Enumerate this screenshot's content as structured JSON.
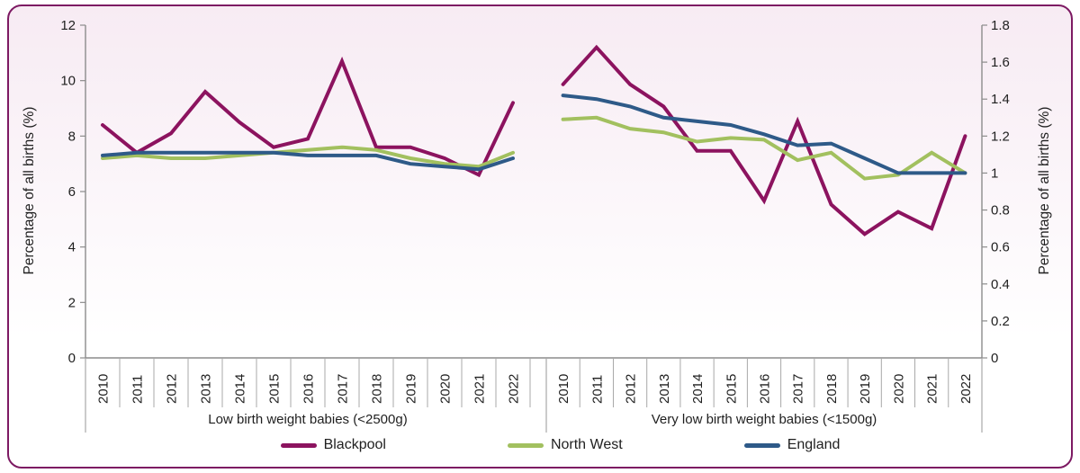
{
  "chart_data": {
    "type": "line",
    "categories": [
      "2010",
      "2011",
      "2012",
      "2013",
      "2014",
      "2015",
      "2016",
      "2017",
      "2018",
      "2019",
      "2020",
      "2021",
      "2022"
    ],
    "y_axis_left": {
      "title": "Percentage of all births (%)",
      "min": 0,
      "max": 12,
      "step": 2,
      "tick_labels": [
        "0",
        "2",
        "4",
        "6",
        "8",
        "10",
        "12"
      ]
    },
    "y_axis_right": {
      "title": "Percentage of all births (%)",
      "min": 0,
      "max": 1.8,
      "step": 0.2,
      "tick_labels": [
        "0",
        "0.2",
        "0.4",
        "0.6",
        "0.8",
        "1",
        "1.2",
        "1.4",
        "1.6",
        "1.8"
      ]
    },
    "panels": [
      {
        "label": "Low birth weight babies (<2500g)",
        "axis": "left",
        "series": [
          {
            "name": "Blackpool",
            "color": "#8C135F",
            "values": [
              8.4,
              7.4,
              8.1,
              9.6,
              8.5,
              7.6,
              7.9,
              10.7,
              7.6,
              7.6,
              7.2,
              6.6,
              9.2
            ]
          },
          {
            "name": "North West",
            "color": "#A2C05F",
            "values": [
              7.2,
              7.3,
              7.2,
              7.2,
              7.3,
              7.4,
              7.5,
              7.6,
              7.5,
              7.2,
              7.0,
              6.9,
              7.4
            ]
          },
          {
            "name": "England",
            "color": "#2E5A88",
            "values": [
              7.3,
              7.4,
              7.4,
              7.4,
              7.4,
              7.4,
              7.3,
              7.3,
              7.3,
              7.0,
              6.9,
              6.8,
              7.2
            ]
          }
        ]
      },
      {
        "label": "Very low birth weight babies (<1500g)",
        "axis": "right",
        "series": [
          {
            "name": "Blackpool",
            "color": "#8C135F",
            "values": [
              1.48,
              1.68,
              1.48,
              1.36,
              1.12,
              1.12,
              0.85,
              1.28,
              0.83,
              0.67,
              0.79,
              0.7,
              1.2
            ]
          },
          {
            "name": "North West",
            "color": "#A2C05F",
            "values": [
              1.29,
              1.3,
              1.24,
              1.22,
              1.17,
              1.19,
              1.18,
              1.07,
              1.11,
              0.97,
              0.99,
              1.11,
              1.0
            ]
          },
          {
            "name": "England",
            "color": "#2E5A88",
            "values": [
              1.42,
              1.4,
              1.36,
              1.3,
              1.28,
              1.26,
              1.21,
              1.15,
              1.16,
              1.08,
              1.0,
              1.0,
              1.0
            ]
          }
        ]
      }
    ],
    "legend": [
      {
        "label": "Blackpool",
        "color": "#8C135F"
      },
      {
        "label": "North West",
        "color": "#A2C05F"
      },
      {
        "label": "England",
        "color": "#2E5A88"
      }
    ],
    "colors": {
      "card_border": "#7D1A63",
      "card_background_top": "#F7EBF3",
      "axis": "#8C8C8C",
      "separator": "#A8A8A8",
      "text": "#1f1f1f"
    },
    "layout": {
      "grid": false,
      "legend_position": "bottom"
    }
  }
}
